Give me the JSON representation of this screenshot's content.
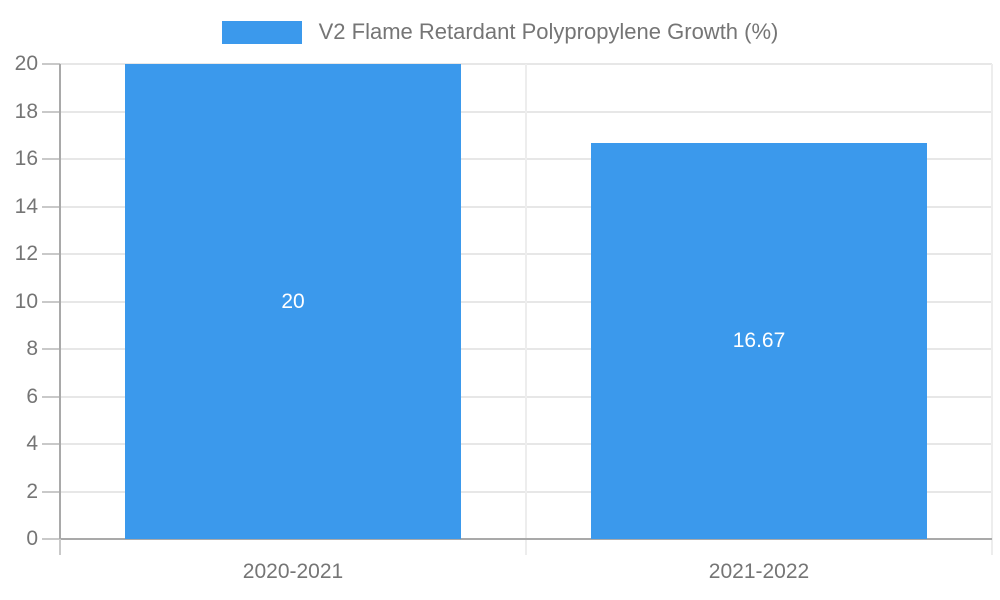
{
  "legend": {
    "series_label": "V2 Flame Retardant Polypropylene Growth (%)"
  },
  "chart_data": {
    "type": "bar",
    "title": "V2 Flame Retardant Polypropylene Growth (%)",
    "categories": [
      "2020-2021",
      "2021-2022"
    ],
    "values": [
      20,
      16.67
    ],
    "bar_labels": [
      "20",
      "16.67"
    ],
    "xlabel": "",
    "ylabel": "",
    "ylim": [
      0,
      20
    ],
    "yticks": [
      0,
      2,
      4,
      6,
      8,
      10,
      12,
      14,
      16,
      18,
      20
    ],
    "grid": true,
    "legend_position": "top-center",
    "bar_label_position": "center-inside",
    "colors": {
      "bar": "#3B99EC",
      "grid": "#E7E7E7",
      "grid_vertical": "#EDEDED",
      "axis": "#A9A9A9",
      "tick": "#C9C9C9",
      "text": "#757575",
      "bar_label": "#FFFFFF",
      "background": "#FFFFFF"
    }
  }
}
